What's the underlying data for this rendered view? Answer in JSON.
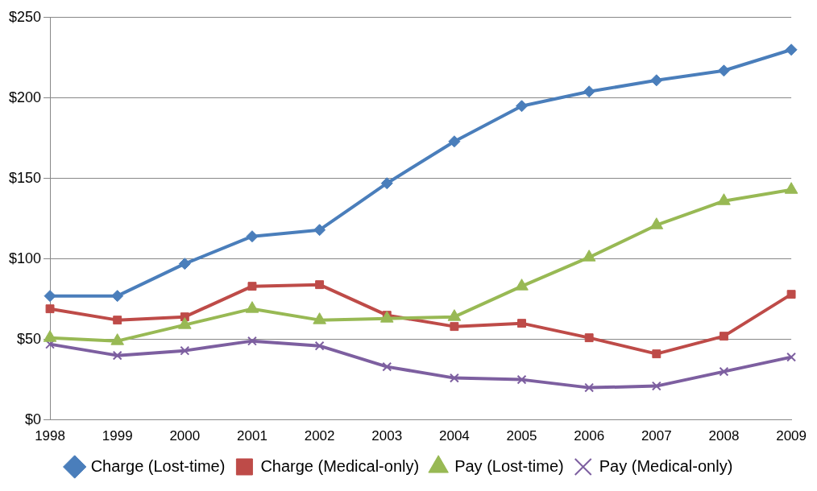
{
  "chart_data": {
    "type": "line",
    "categories": [
      "1998",
      "1999",
      "2000",
      "2001",
      "2002",
      "2003",
      "2004",
      "2005",
      "2006",
      "2007",
      "2008",
      "2009"
    ],
    "series": [
      {
        "name": "Charge (Lost-time)",
        "color": "#4a7ebb",
        "marker": "diamond",
        "values": [
          77,
          77,
          97,
          114,
          118,
          147,
          173,
          195,
          204,
          211,
          217,
          230
        ]
      },
      {
        "name": "Charge (Medical-only)",
        "color": "#be4b48",
        "marker": "square",
        "values": [
          69,
          62,
          64,
          83,
          84,
          65,
          58,
          60,
          51,
          41,
          52,
          78
        ]
      },
      {
        "name": "Pay (Lost-time)",
        "color": "#98b954",
        "marker": "triangle",
        "values": [
          51,
          49,
          59,
          69,
          62,
          63,
          64,
          83,
          101,
          121,
          136,
          143
        ]
      },
      {
        "name": "Pay (Medical-only)",
        "color": "#7d5fa0",
        "marker": "cross",
        "values": [
          47,
          40,
          43,
          49,
          46,
          33,
          26,
          25,
          20,
          21,
          30,
          39
        ]
      }
    ],
    "ylim": [
      0,
      250
    ],
    "yticks": [
      {
        "value": 0,
        "label": "$0"
      },
      {
        "value": 50,
        "label": "$50"
      },
      {
        "value": 100,
        "label": "$100"
      },
      {
        "value": 150,
        "label": "$150"
      },
      {
        "value": 200,
        "label": "$200"
      },
      {
        "value": 250,
        "label": "$250"
      }
    ],
    "grid": "y",
    "legend": "bottom",
    "line_style": "solid"
  }
}
